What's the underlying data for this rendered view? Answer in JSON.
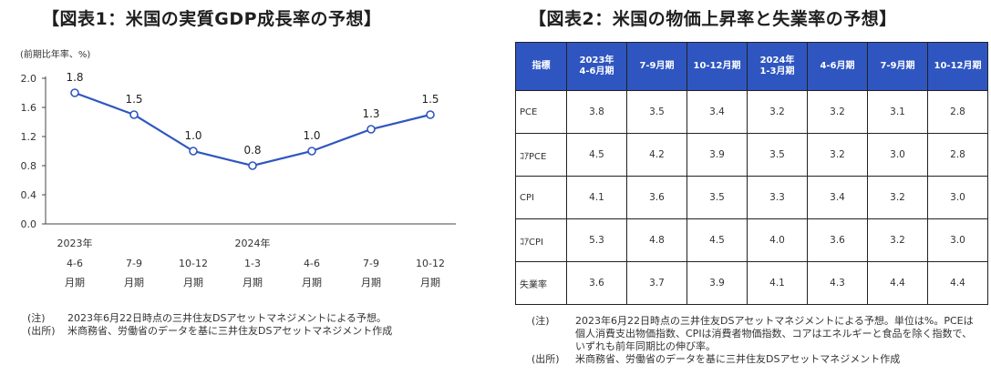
{
  "chart_data": [
    {
      "type": "line",
      "title": "【図表1：米国の実質GDP成長率の予想】",
      "ylabel": "(前期比年率、%)",
      "ylim": [
        0.0,
        2.0
      ],
      "yticks": [
        "0.0",
        "0.4",
        "0.8",
        "1.2",
        "1.6",
        "2.0"
      ],
      "categories": [
        {
          "year": "2023年",
          "range": "4-6",
          "unit": "月期"
        },
        {
          "year": "",
          "range": "7-9",
          "unit": "月期"
        },
        {
          "year": "",
          "range": "10-12",
          "unit": "月期"
        },
        {
          "year": "2024年",
          "range": "1-3",
          "unit": "月期"
        },
        {
          "year": "",
          "range": "4-6",
          "unit": "月期"
        },
        {
          "year": "",
          "range": "7-9",
          "unit": "月期"
        },
        {
          "year": "",
          "range": "10-12",
          "unit": "月期"
        }
      ],
      "values": [
        1.8,
        1.5,
        1.0,
        0.8,
        1.0,
        1.3,
        1.5
      ],
      "labels": [
        "1.8",
        "1.5",
        "1.0",
        "0.8",
        "1.0",
        "1.3",
        "1.5"
      ],
      "line_color": "#2f56c0",
      "grid": false
    },
    {
      "type": "table",
      "title": "【図表2：米国の物価上昇率と失業率の予想】",
      "columns": [
        "指標",
        "2023年\n4-6月期",
        "7-9月期",
        "10-12月期",
        "2024年\n1-3月期",
        "4-6月期",
        "7-9月期",
        "10-12月期"
      ],
      "rows": [
        {
          "name": "PCE",
          "values": [
            "3.8",
            "3.5",
            "3.4",
            "3.2",
            "3.2",
            "3.1",
            "2.8"
          ]
        },
        {
          "name": "ｺｱPCE",
          "values": [
            "4.5",
            "4.2",
            "3.9",
            "3.5",
            "3.2",
            "3.0",
            "2.8"
          ]
        },
        {
          "name": "CPI",
          "values": [
            "4.1",
            "3.6",
            "3.5",
            "3.3",
            "3.4",
            "3.2",
            "3.0"
          ]
        },
        {
          "name": "ｺｱCPI",
          "values": [
            "5.3",
            "4.8",
            "4.5",
            "4.0",
            "3.6",
            "3.2",
            "3.0"
          ]
        },
        {
          "name": "失業率",
          "values": [
            "3.6",
            "3.7",
            "3.9",
            "4.1",
            "4.3",
            "4.4",
            "4.4"
          ]
        }
      ],
      "header_color": "#2f56c0"
    }
  ],
  "notes1": {
    "note_tag": "(注)",
    "note_text": "2023年6月22日時点の三井住友DSアセットマネジメントによる予想。",
    "source_tag": "(出所)",
    "source_text": "米商務省、労働省のデータを基に三井住友DSアセットマネジメント作成"
  },
  "notes2": {
    "note_tag": "(注)",
    "note_text": "2023年6月22日時点の三井住友DSアセットマネジメントによる予想。単位は%。PCEは個人消費支出物価指数、CPIは消費者物価指数、コアはエネルギーと食品を除く指数で、いずれも前年同期比の伸び率。",
    "source_tag": "(出所)",
    "source_text": "米商務省、労働省のデータを基に三井住友DSアセットマネジメント作成"
  }
}
